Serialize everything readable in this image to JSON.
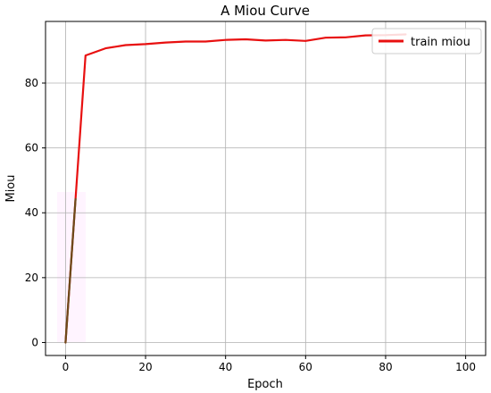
{
  "chart_data": {
    "type": "line",
    "title": "A Miou Curve",
    "xlabel": "Epoch",
    "ylabel": "Miou",
    "xlim": [
      -5,
      105
    ],
    "ylim": [
      -4,
      99
    ],
    "x_ticks": [
      0,
      20,
      40,
      60,
      80,
      100
    ],
    "y_ticks": [
      0,
      20,
      40,
      60,
      80
    ],
    "grid": true,
    "legend_position": "upper-right",
    "series": [
      {
        "name": "train miou",
        "color": "#e81010",
        "x": [
          0,
          5,
          10,
          15,
          20,
          25,
          30,
          35,
          40,
          45,
          50,
          55,
          60,
          65,
          70,
          75,
          80,
          85
        ],
        "y": [
          0,
          88.5,
          90.7,
          91.7,
          92.0,
          92.5,
          92.8,
          92.8,
          93.3,
          93.5,
          93.1,
          93.3,
          93.0,
          94.0,
          94.1,
          94.7,
          94.8,
          95.0
        ]
      }
    ]
  }
}
